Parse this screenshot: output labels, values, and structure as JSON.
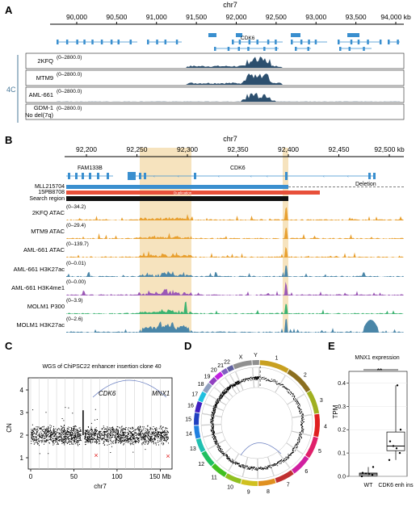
{
  "panelA": {
    "letter": "A",
    "chrom": "chr7",
    "ticks": [
      "90,000",
      "90,500",
      "91,000",
      "91,500",
      "92,000",
      "92,500",
      "93,000",
      "93,500",
      "94,000 kb"
    ],
    "gene_label": "CDK6",
    "group_label": "4C",
    "tracks": [
      {
        "name": "2KFQ",
        "range": "(0–2800.0)"
      },
      {
        "name": "MTM9",
        "range": "(0–2800.0)"
      },
      {
        "name": "AML-661",
        "range": "(0–2800.0)"
      },
      {
        "name": "GDM-1",
        "name2": "No del(7q)",
        "range": "(0–2800.0)"
      }
    ]
  },
  "panelB": {
    "letter": "B",
    "chrom": "chr7",
    "ticks": [
      "92,200",
      "92,250",
      "92,300",
      "92,350",
      "92,400",
      "92,450",
      "92,500 kb"
    ],
    "genes": [
      "FAM133B",
      "CDK6"
    ],
    "annot_rows": [
      "MLL215704",
      "15PB8708",
      "Search region"
    ],
    "deletion_label": "Deletion",
    "duplication_label": "Duplication",
    "tracks": [
      {
        "name": "2KFQ ATAC",
        "range": "(0–34.2)",
        "color": "#E8A030"
      },
      {
        "name": "MTM9 ATAC",
        "range": "(0–29.4)",
        "color": "#E8A030"
      },
      {
        "name": "AML-661 ATAC",
        "range": "(0–139.7)",
        "color": "#E8A030"
      },
      {
        "name": "AML-661 H3K27ac",
        "range": "(0–0.01)",
        "color": "#4A86A8"
      },
      {
        "name": "AML-661 H3K4me1",
        "range": "(0–0.00)",
        "color": "#9B59B6"
      },
      {
        "name": "MOLM1 P300",
        "range": "(0–3.9)",
        "color": "#3CB371"
      },
      {
        "name": "MOLM1 H3K27ac",
        "range": "(0–2.6)",
        "color": "#4A86A8"
      }
    ]
  },
  "panelC": {
    "letter": "C",
    "title": "WGS of ChiPSC22 enhancer insertion clone 40",
    "ylabel": "CN",
    "xlabel": "chr7",
    "yticks": [
      "1",
      "2",
      "3",
      "4"
    ],
    "xticks": [
      "0",
      "50",
      "100",
      "150 Mb"
    ],
    "labels": {
      "cdk6": "CDK6",
      "mnx1": "MNX1"
    }
  },
  "panelD": {
    "letter": "D",
    "chromosomes": [
      "1",
      "2",
      "3",
      "4",
      "5",
      "6",
      "7",
      "8",
      "9",
      "10",
      "11",
      "12",
      "13",
      "14",
      "15",
      "16",
      "17",
      "18",
      "19",
      "20",
      "21",
      "22",
      "X",
      "Y"
    ]
  },
  "panelE": {
    "letter": "E",
    "title": "MNX1 expression",
    "ylabel": "TPM",
    "significance": "**",
    "yticks": [
      "0.0",
      "0.1",
      "0.2",
      "0.3",
      "0.4"
    ],
    "chart_data": {
      "type": "box",
      "title": "MNX1 expression",
      "ylabel": "TPM",
      "ylim": [
        0,
        0.45
      ],
      "categories": [
        "WT",
        "CDK6 enh ins"
      ],
      "series": [
        {
          "name": "WT",
          "points": [
            0.0,
            0.005,
            0.01,
            0.012,
            0.015,
            0.04
          ],
          "q1": 0.003,
          "median": 0.01,
          "q3": 0.014,
          "whisker_low": 0.0,
          "whisker_high": 0.04
        },
        {
          "name": "CDK6 enh ins",
          "points": [
            0.07,
            0.1,
            0.12,
            0.13,
            0.15,
            0.2,
            0.39
          ],
          "q1": 0.11,
          "median": 0.13,
          "q3": 0.19,
          "whisker_low": 0.07,
          "whisker_high": 0.39
        }
      ]
    }
  }
}
